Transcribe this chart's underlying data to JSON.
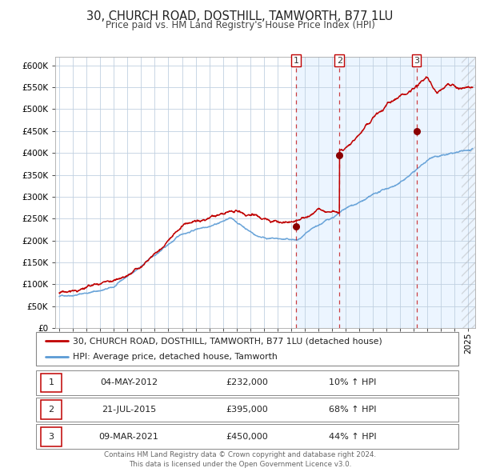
{
  "title": "30, CHURCH ROAD, DOSTHILL, TAMWORTH, B77 1LU",
  "subtitle": "Price paid vs. HM Land Registry's House Price Index (HPI)",
  "hpi_label": "HPI: Average price, detached house, Tamworth",
  "property_label": "30, CHURCH ROAD, DOSTHILL, TAMWORTH, B77 1LU (detached house)",
  "footer1": "Contains HM Land Registry data © Crown copyright and database right 2024.",
  "footer2": "This data is licensed under the Open Government Licence v3.0.",
  "sales": [
    {
      "num": 1,
      "date": "04-MAY-2012",
      "price": 232000,
      "price_str": "£232,000",
      "pct": "10%",
      "dir": "↑",
      "x_year": 2012.35
    },
    {
      "num": 2,
      "date": "21-JUL-2015",
      "price": 395000,
      "price_str": "£395,000",
      "pct": "68%",
      "dir": "↑",
      "x_year": 2015.55
    },
    {
      "num": 3,
      "date": "09-MAR-2021",
      "price": 450000,
      "price_str": "£450,000",
      "pct": "44%",
      "dir": "↑",
      "x_year": 2021.19
    }
  ],
  "ylim": [
    0,
    620000
  ],
  "yticks": [
    0,
    50000,
    100000,
    150000,
    200000,
    250000,
    300000,
    350000,
    400000,
    450000,
    500000,
    550000,
    600000
  ],
  "xlim_start": 1994.7,
  "xlim_end": 2025.5,
  "hpi_color": "#5b9bd5",
  "price_color": "#c00000",
  "sale_dot_color": "#8b0000",
  "vline_color": "#c00000",
  "bg_shade_color": "#ddeeff",
  "grid_color": "#c0d0e0",
  "title_fontsize": 10.5,
  "subtitle_fontsize": 8.5,
  "axis_fontsize": 7.5,
  "legend_fontsize": 8,
  "table_fontsize": 8
}
